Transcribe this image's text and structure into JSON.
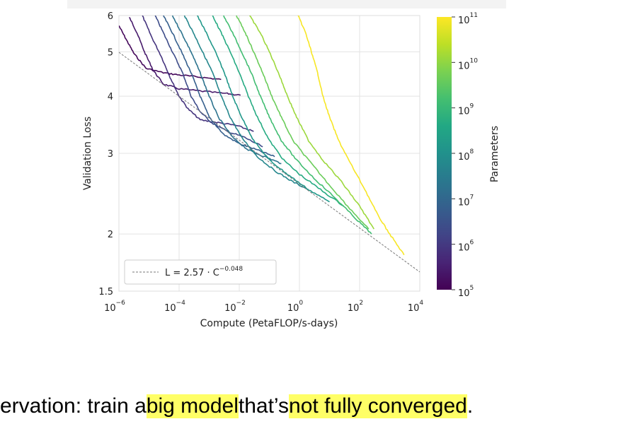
{
  "chart_data": {
    "type": "line",
    "xlabel": "Compute (PetaFLOP/s-days)",
    "ylabel": "Validation Loss",
    "xscale": "log",
    "yscale": "log",
    "xlim": [
      1e-06,
      10000.0
    ],
    "ylim": [
      1.5,
      6
    ],
    "x_ticks": [
      {
        "base": "10",
        "exp": "−6"
      },
      {
        "base": "10",
        "exp": "−4"
      },
      {
        "base": "10",
        "exp": "−2"
      },
      {
        "base": "10",
        "exp": "0"
      },
      {
        "base": "10",
        "exp": "2"
      },
      {
        "base": "10",
        "exp": "4"
      }
    ],
    "y_ticks": [
      "1.5",
      "2",
      "3",
      "4",
      "5",
      "6"
    ],
    "grid": true,
    "legend": {
      "placement": "bottom-left",
      "label_prefix": "L = 2.57 · C",
      "label_exp": "−0.048",
      "style": "dashed gray"
    },
    "fit": {
      "a": 2.57,
      "b": -0.048,
      "x_range": [
        1e-06,
        10000.0
      ]
    },
    "colorbar": {
      "label": "Parameters",
      "scale": "log",
      "range": [
        100000.0,
        100000000000.0
      ],
      "ticks": [
        {
          "base": "10",
          "exp": "11"
        },
        {
          "base": "10",
          "exp": "10"
        },
        {
          "base": "10",
          "exp": "9"
        },
        {
          "base": "10",
          "exp": "8"
        },
        {
          "base": "10",
          "exp": "7"
        },
        {
          "base": "10",
          "exp": "6"
        },
        {
          "base": "10",
          "exp": "5"
        }
      ],
      "colormap": [
        "#440154",
        "#482475",
        "#414487",
        "#355f8d",
        "#2a788e",
        "#21918c",
        "#22a884",
        "#44bf70",
        "#7ad151",
        "#bddf26",
        "#fde725"
      ]
    },
    "series": [
      {
        "color_value": 0.02,
        "points": [
          [
            1e-06,
            5.7
          ],
          [
            1.8e-06,
            5.3
          ],
          [
            3.2e-06,
            4.95
          ],
          [
            8e-06,
            4.6
          ],
          [
            3e-05,
            4.5
          ],
          [
            0.0001,
            4.45
          ],
          [
            0.0005,
            4.4
          ],
          [
            0.0025,
            4.35
          ]
        ]
      },
      {
        "color_value": 0.07,
        "points": [
          [
            2.2e-06,
            5.95
          ],
          [
            4e-06,
            5.5
          ],
          [
            7e-06,
            5.0
          ],
          [
            1.4e-05,
            4.55
          ],
          [
            3e-05,
            4.25
          ],
          [
            0.0001,
            4.15
          ],
          [
            0.0006,
            4.1
          ],
          [
            0.004,
            4.05
          ],
          [
            0.011,
            4.02
          ]
        ]
      },
      {
        "color_value": 0.15,
        "points": [
          [
            6e-06,
            6.0
          ],
          [
            1.2e-05,
            5.4
          ],
          [
            2.5e-05,
            4.9
          ],
          [
            5e-05,
            4.4
          ],
          [
            0.0001,
            4.0
          ],
          [
            0.0002,
            3.75
          ],
          [
            0.0005,
            3.55
          ],
          [
            0.002,
            3.5
          ],
          [
            0.008,
            3.45
          ],
          [
            0.03,
            3.35
          ]
        ]
      },
      {
        "color_value": 0.23,
        "points": [
          [
            1.6e-05,
            6.0
          ],
          [
            3e-05,
            5.5
          ],
          [
            6e-05,
            5.0
          ],
          [
            0.00013,
            4.5
          ],
          [
            0.00025,
            4.0
          ],
          [
            0.0005,
            3.7
          ],
          [
            0.0012,
            3.5
          ],
          [
            0.004,
            3.35
          ],
          [
            0.015,
            3.25
          ],
          [
            0.06,
            3.1
          ]
        ]
      },
      {
        "color_value": 0.3,
        "points": [
          [
            3e-05,
            6.0
          ],
          [
            6e-05,
            5.5
          ],
          [
            0.00012,
            5.0
          ],
          [
            0.00025,
            4.5
          ],
          [
            0.0005,
            4.0
          ],
          [
            0.001,
            3.6
          ],
          [
            0.003,
            3.3
          ],
          [
            0.01,
            3.15
          ],
          [
            0.04,
            3.05
          ],
          [
            0.15,
            2.95
          ]
        ]
      },
      {
        "color_value": 0.38,
        "points": [
          [
            6e-05,
            6.0
          ],
          [
            0.00012,
            5.5
          ],
          [
            0.00025,
            5.0
          ],
          [
            0.0005,
            4.5
          ],
          [
            0.001,
            4.0
          ],
          [
            0.002,
            3.6
          ],
          [
            0.006,
            3.25
          ],
          [
            0.02,
            3.05
          ],
          [
            0.07,
            2.95
          ],
          [
            0.25,
            2.85
          ]
        ]
      },
      {
        "color_value": 0.46,
        "points": [
          [
            0.00015,
            6.0
          ],
          [
            0.0003,
            5.5
          ],
          [
            0.0006,
            5.0
          ],
          [
            0.0013,
            4.5
          ],
          [
            0.0025,
            4.0
          ],
          [
            0.005,
            3.6
          ],
          [
            0.012,
            3.25
          ],
          [
            0.04,
            2.95
          ],
          [
            0.15,
            2.75
          ],
          [
            0.6,
            2.6
          ],
          [
            2,
            2.5
          ]
        ]
      },
      {
        "color_value": 0.53,
        "points": [
          [
            0.0004,
            6.0
          ],
          [
            0.0008,
            5.5
          ],
          [
            0.0016,
            5.0
          ],
          [
            0.0032,
            4.5
          ],
          [
            0.006,
            4.0
          ],
          [
            0.012,
            3.6
          ],
          [
            0.03,
            3.2
          ],
          [
            0.1,
            2.9
          ],
          [
            0.4,
            2.7
          ],
          [
            2,
            2.5
          ],
          [
            10.0,
            2.35
          ]
        ]
      },
      {
        "color_value": 0.61,
        "points": [
          [
            0.0013,
            6.0
          ],
          [
            0.0025,
            5.5
          ],
          [
            0.005,
            5.0
          ],
          [
            0.01,
            4.5
          ],
          [
            0.02,
            4.0
          ],
          [
            0.04,
            3.6
          ],
          [
            0.1,
            3.2
          ],
          [
            0.3,
            2.9
          ],
          [
            1,
            2.7
          ],
          [
            5,
            2.5
          ],
          [
            30.0,
            2.3
          ]
        ]
      },
      {
        "color_value": 0.69,
        "points": [
          [
            0.003,
            6.0
          ],
          [
            0.006,
            5.5
          ],
          [
            0.012,
            5.0
          ],
          [
            0.025,
            4.5
          ],
          [
            0.05,
            4.0
          ],
          [
            0.1,
            3.6
          ],
          [
            0.25,
            3.2
          ],
          [
            0.8,
            2.9
          ],
          [
            3,
            2.65
          ],
          [
            15.0,
            2.4
          ],
          [
            80.0,
            2.15
          ],
          [
            250.0,
            2.0
          ]
        ]
      },
      {
        "color_value": 0.77,
        "points": [
          [
            0.008,
            6.0
          ],
          [
            0.016,
            5.5
          ],
          [
            0.03,
            5.0
          ],
          [
            0.06,
            4.5
          ],
          [
            0.12,
            4.0
          ],
          [
            0.25,
            3.6
          ],
          [
            0.6,
            3.2
          ],
          [
            2,
            2.9
          ],
          [
            8,
            2.6
          ],
          [
            40.0,
            2.3
          ],
          [
            200.0,
            2.05
          ]
        ]
      },
      {
        "color_value": 0.85,
        "points": [
          [
            0.022,
            6.0
          ],
          [
            0.05,
            5.5
          ],
          [
            0.1,
            5.0
          ],
          [
            0.2,
            4.5
          ],
          [
            0.4,
            4.0
          ],
          [
            0.8,
            3.6
          ],
          [
            2,
            3.2
          ],
          [
            6,
            2.9
          ],
          [
            25.0,
            2.6
          ],
          [
            100.0,
            2.3
          ],
          [
            300.0,
            2.05
          ]
        ]
      },
      {
        "color_value": 0.99,
        "points": [
          [
            0.9,
            6.0
          ],
          [
            1.6,
            5.5
          ],
          [
            2.5,
            5.0
          ],
          [
            4,
            4.5
          ],
          [
            6,
            4.0
          ],
          [
            10.0,
            3.6
          ],
          [
            20.0,
            3.2
          ],
          [
            50.0,
            2.85
          ],
          [
            150.0,
            2.5
          ],
          [
            400.0,
            2.2
          ],
          [
            1000.0,
            2.0
          ],
          [
            3000.0,
            1.8
          ]
        ]
      }
    ]
  },
  "caption": {
    "segments": [
      {
        "text": "ervation: train a ",
        "highlight": false
      },
      {
        "text": "big model",
        "highlight": true
      },
      {
        "text": " that’s ",
        "highlight": false
      },
      {
        "text": "not fully converged",
        "highlight": true
      },
      {
        "text": ".",
        "highlight": false
      }
    ]
  }
}
